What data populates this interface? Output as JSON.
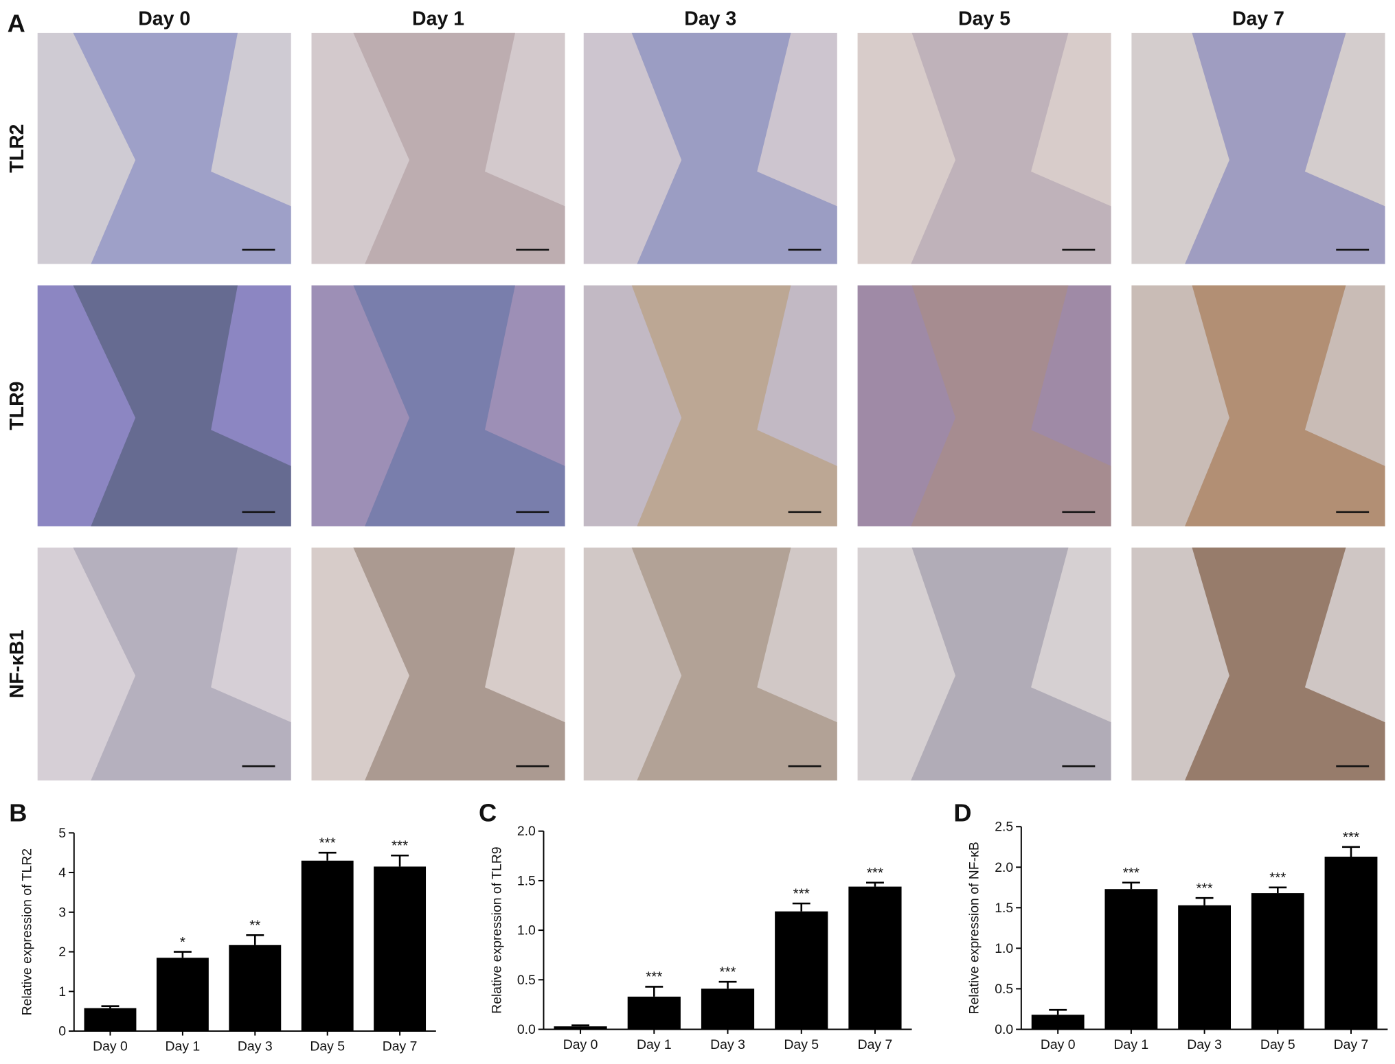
{
  "panel_a": {
    "label": "A",
    "columns": [
      "Day  0",
      "Day  1",
      "Day  3",
      "Day  5",
      "Day 7"
    ],
    "rows": [
      "TLR2",
      "TLR9",
      "NF-κB1"
    ]
  },
  "chart_data": [
    {
      "type": "bar",
      "label": "B",
      "y_label": "Relative expression of TLR2",
      "categories": [
        "Day 0",
        "Day 1",
        "Day 3",
        "Day 5",
        "Day 7"
      ],
      "values": [
        0.58,
        1.85,
        2.17,
        4.3,
        4.15
      ],
      "errors": [
        0.05,
        0.15,
        0.25,
        0.2,
        0.28
      ],
      "significance": [
        null,
        "*",
        "**",
        "***",
        "***"
      ],
      "color": "#000000",
      "ylim": [
        0,
        5
      ],
      "yticks": [
        0,
        1,
        2,
        3,
        4,
        5
      ]
    },
    {
      "type": "bar",
      "label": "C",
      "y_label": "Relative expression of TLR9",
      "categories": [
        "Day 0",
        "Day 1",
        "Day 3",
        "Day 5",
        "Day 7"
      ],
      "values": [
        0.03,
        0.33,
        0.41,
        1.19,
        1.44
      ],
      "errors": [
        0.01,
        0.1,
        0.07,
        0.08,
        0.04
      ],
      "significance": [
        null,
        "***",
        "***",
        "***",
        "***"
      ],
      "color": "#000000",
      "ylim": [
        0,
        2.0
      ],
      "yticks": [
        {
          "value": 0,
          "label": "0.0"
        },
        {
          "value": 0.5,
          "label": "0.5"
        },
        {
          "value": 1,
          "label": "1.0"
        },
        {
          "value": 1.5,
          "label": "1.5"
        },
        {
          "value": 2,
          "label": "2.0"
        }
      ]
    },
    {
      "type": "bar",
      "label": "D",
      "y_label": "Relative expression of NF-κB",
      "categories": [
        "Day 0",
        "Day 1",
        "Day 3",
        "Day 5",
        "Day 7"
      ],
      "values": [
        0.18,
        1.73,
        1.53,
        1.68,
        2.13
      ],
      "errors": [
        0.06,
        0.08,
        0.09,
        0.07,
        0.12
      ],
      "significance": [
        null,
        "***",
        "***",
        "***",
        "***"
      ],
      "color": "#000000",
      "ylim": [
        0,
        2.5
      ],
      "yticks": [
        {
          "value": 0,
          "label": "0.0"
        },
        {
          "value": 0.5,
          "label": "0.5"
        },
        {
          "value": 1,
          "label": "1.0"
        },
        {
          "value": 1.5,
          "label": "1.5"
        },
        {
          "value": 2,
          "label": "2.0"
        },
        {
          "value": 2.5,
          "label": "2.5"
        }
      ]
    }
  ]
}
